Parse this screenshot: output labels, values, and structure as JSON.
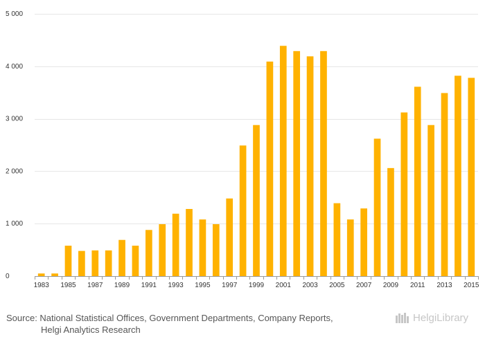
{
  "chart_data": {
    "type": "bar",
    "title": "",
    "xlabel": "",
    "ylabel": "",
    "ylim": [
      0,
      5000
    ],
    "yticks": [
      0,
      1000,
      2000,
      3000,
      4000,
      5000
    ],
    "ytick_labels": [
      "0",
      "1 000",
      "2 000",
      "3 000",
      "4 000",
      "5 000"
    ],
    "categories": [
      "1983",
      "1984",
      "1985",
      "1986",
      "1987",
      "1988",
      "1989",
      "1990",
      "1991",
      "1992",
      "1993",
      "1994",
      "1995",
      "1996",
      "1997",
      "1998",
      "1999",
      "2000",
      "2001",
      "2002",
      "2003",
      "2004",
      "2005",
      "2006",
      "2007",
      "2008",
      "2009",
      "2010",
      "2011",
      "2012",
      "2013",
      "2014",
      "2015"
    ],
    "xtick_labels": [
      "1983",
      "1985",
      "1987",
      "1989",
      "1991",
      "1993",
      "1995",
      "1997",
      "1999",
      "2001",
      "2003",
      "2005",
      "2007",
      "2009",
      "2011",
      "2013",
      "2015"
    ],
    "values": [
      50,
      50,
      580,
      480,
      490,
      490,
      690,
      580,
      880,
      990,
      1190,
      1280,
      1080,
      990,
      1480,
      2490,
      2880,
      4090,
      4390,
      4290,
      4190,
      4290,
      1390,
      1080,
      1290,
      2620,
      2060,
      3120,
      3610,
      2880,
      3490,
      3820,
      3780
    ],
    "bar_color": "#FFB200",
    "grid": true
  },
  "footer": {
    "source_line1": "Source: National Statistical Offices, Government Departments, Company Reports,",
    "source_line2": "Helgi Analytics Research"
  },
  "logo": {
    "text": "HelgiLibrary",
    "icon": "helgi-library-icon"
  }
}
